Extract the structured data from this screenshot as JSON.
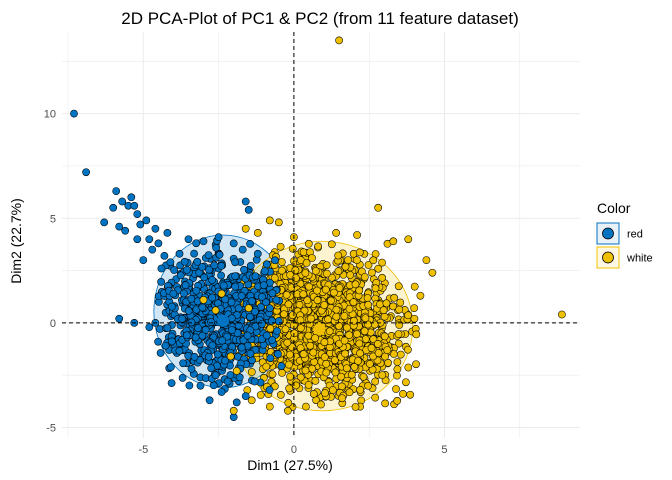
{
  "chart_data": {
    "type": "scatter",
    "title": "2D PCA-Plot of PC1 & PC2 (from 11 feature dataset)",
    "xlabel": "Dim1 (27.5%)",
    "ylabel": "Dim2 (22.7%)",
    "xlim": [
      -7.7,
      9.5
    ],
    "ylim": [
      -5.5,
      13.9
    ],
    "x_ticks": [
      -5,
      0,
      5
    ],
    "y_ticks": [
      -5,
      0,
      5,
      10
    ],
    "x_tick_labels": [
      "-5",
      "0",
      "5"
    ],
    "y_tick_labels": [
      "-5",
      "0",
      "5",
      "10"
    ],
    "grid": true,
    "reference_lines": {
      "x": 0,
      "y": 0,
      "style": "dashed"
    },
    "legend": {
      "title": "Color",
      "placement": "right",
      "entries": [
        {
          "label": "red",
          "color": "#0073C2"
        },
        {
          "label": "white",
          "color": "#EFC000"
        }
      ]
    },
    "series": [
      {
        "name": "red",
        "color": "#0073C2",
        "center": [
          -2.35,
          0.1
        ],
        "ellipse": {
          "cx": -2.35,
          "cy": 0.55,
          "rx": 2.3,
          "ry": 3.65
        },
        "points": [
          [
            -7.3,
            10.0
          ],
          [
            -6.9,
            7.2
          ],
          [
            -5.9,
            6.3
          ],
          [
            -5.7,
            5.8
          ],
          [
            -5.5,
            5.6
          ],
          [
            -5.4,
            6.0
          ],
          [
            -5.3,
            5.6
          ],
          [
            -5.2,
            5.2
          ],
          [
            -6.0,
            5.5
          ],
          [
            -6.3,
            4.8
          ],
          [
            -5.1,
            4.7
          ],
          [
            -4.9,
            4.9
          ],
          [
            -4.8,
            4.0
          ],
          [
            -4.6,
            4.5
          ],
          [
            -5.6,
            4.4
          ],
          [
            -5.8,
            4.6
          ],
          [
            -5.2,
            4.0
          ],
          [
            -4.5,
            3.8
          ],
          [
            -4.2,
            4.3
          ],
          [
            -4.3,
            3.2
          ],
          [
            -4.7,
            3.5
          ],
          [
            -5.0,
            3.0
          ],
          [
            -4.4,
            2.6
          ],
          [
            -4.1,
            2.9
          ],
          [
            -1.6,
            5.8
          ],
          [
            -1.5,
            5.4
          ],
          [
            -3.8,
            3.3
          ],
          [
            -3.6,
            1.8
          ],
          [
            -4.0,
            1.4
          ],
          [
            -4.6,
            0.0
          ],
          [
            -5.8,
            0.2
          ],
          [
            -5.3,
            0.0
          ],
          [
            -4.8,
            -0.2
          ],
          [
            -2.0,
            -4.5
          ],
          [
            -2.8,
            -3.7
          ],
          [
            -2.4,
            -3.3
          ],
          [
            -1.9,
            -3.8
          ],
          [
            -1.6,
            -3.5
          ],
          [
            -3.1,
            -3.0
          ],
          [
            -1.3,
            -2.8
          ],
          [
            -1.8,
            -2.6
          ],
          [
            -3.4,
            -2.2
          ],
          [
            -2.2,
            -2.8
          ],
          [
            -2.6,
            -2.5
          ],
          [
            -3.5,
            4.0
          ],
          [
            -2.5,
            4.1
          ],
          [
            -3.0,
            3.9
          ],
          [
            -2.0,
            3.8
          ],
          [
            -1.7,
            3.5
          ],
          [
            -1.2,
            3.3
          ],
          [
            -0.9,
            2.8
          ],
          [
            -1.0,
            1.8
          ],
          [
            -0.8,
            0.7
          ],
          [
            -0.9,
            -0.6
          ]
        ]
      },
      {
        "name": "white",
        "color": "#EFC000",
        "center": [
          0.85,
          -0.3
        ],
        "ellipse": {
          "cx": 0.95,
          "cy": -0.15,
          "rx": 3.0,
          "ry": 4.05
        },
        "points": [
          [
            1.5,
            13.5
          ],
          [
            8.9,
            0.4
          ],
          [
            2.8,
            5.5
          ],
          [
            0.0,
            4.1
          ],
          [
            -0.8,
            4.9
          ],
          [
            -0.5,
            4.8
          ],
          [
            -1.6,
            4.5
          ],
          [
            1.4,
            4.3
          ],
          [
            2.1,
            4.2
          ],
          [
            3.8,
            4.0
          ],
          [
            3.3,
            3.9
          ],
          [
            4.4,
            3.0
          ],
          [
            4.6,
            2.4
          ],
          [
            4.2,
            1.3
          ],
          [
            4.0,
            0.2
          ],
          [
            3.5,
            -0.1
          ],
          [
            3.1,
            -1.3
          ],
          [
            2.7,
            -2.8
          ],
          [
            2.2,
            -3.2
          ],
          [
            1.6,
            -3.6
          ],
          [
            0.9,
            -3.9
          ],
          [
            0.4,
            -4.0
          ],
          [
            -0.2,
            -4.2
          ],
          [
            -0.8,
            -4.0
          ],
          [
            -1.4,
            -3.7
          ],
          [
            -1.9,
            -2.3
          ],
          [
            -2.1,
            -1.6
          ],
          [
            -2.6,
            0.6
          ],
          [
            -3.0,
            1.1
          ],
          [
            -2.4,
            1.4
          ],
          [
            -1.2,
            4.3
          ],
          [
            -0.4,
            2.5
          ],
          [
            0.6,
            3.1
          ],
          [
            1.8,
            3.0
          ],
          [
            -2.0,
            -4.2
          ],
          [
            -1.5,
            0.7
          ]
        ]
      }
    ]
  }
}
